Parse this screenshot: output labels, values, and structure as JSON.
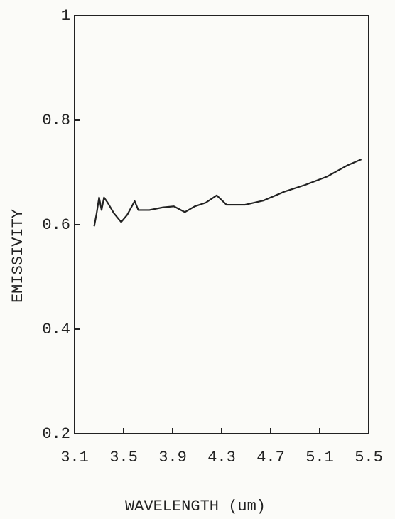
{
  "chart_data": {
    "type": "line",
    "xlabel": "WAVELENGTH (um)",
    "ylabel": "EMISSIVITY",
    "x": [
      3.26,
      3.28,
      3.3,
      3.32,
      3.34,
      3.37,
      3.42,
      3.48,
      3.53,
      3.59,
      3.62,
      3.71,
      3.82,
      3.91,
      4.0,
      4.08,
      4.17,
      4.26,
      4.34,
      4.49,
      4.64,
      4.81,
      4.98,
      5.16,
      5.33,
      5.44
    ],
    "series": [
      {
        "color": "#222222",
        "values": [
          0.597,
          0.622,
          0.652,
          0.628,
          0.652,
          0.642,
          0.622,
          0.605,
          0.619,
          0.645,
          0.628,
          0.628,
          0.633,
          0.635,
          0.624,
          0.635,
          0.642,
          0.656,
          0.638,
          0.638,
          0.646,
          0.663,
          0.676,
          0.692,
          0.714,
          0.725
        ]
      }
    ],
    "xlim": [
      3.1,
      5.5
    ],
    "xticks": [
      3.1,
      3.5,
      3.9,
      4.3,
      4.7,
      5.1,
      5.5
    ],
    "ylim": [
      0.2,
      1
    ],
    "yticks": [
      0.2,
      0.4,
      0.6,
      0.8,
      1
    ],
    "grid": false
  }
}
